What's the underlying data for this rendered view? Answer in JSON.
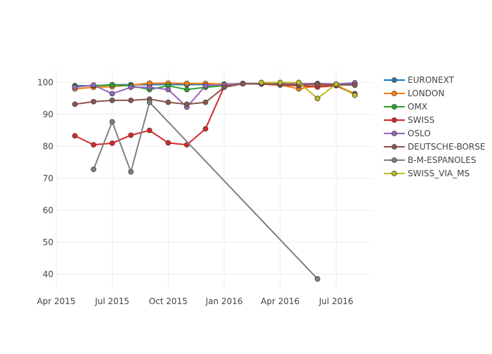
{
  "chart_data": {
    "type": "line",
    "title": "",
    "xlabel": "",
    "ylabel": "",
    "x": [
      "2015-05",
      "2015-06",
      "2015-07",
      "2015-08",
      "2015-09",
      "2015-10",
      "2015-11",
      "2015-12",
      "2016-01",
      "2016-02",
      "2016-03",
      "2016-04",
      "2016-05",
      "2016-06",
      "2016-07",
      "2016-08"
    ],
    "x_ticks": [
      "Apr 2015",
      "Jul 2015",
      "Oct 2015",
      "Jan 2016",
      "Apr 2016",
      "Jul 2016"
    ],
    "y_ticks": [
      40,
      50,
      60,
      70,
      80,
      90,
      100
    ],
    "ylim": [
      35,
      104.5
    ],
    "grid": true,
    "legend_position": "right",
    "series": [
      {
        "name": "EURONEXT",
        "color": "#1f77b4",
        "values": [
          99,
          99,
          99.3,
          99.3,
          99.3,
          99.4,
          99.3,
          99.4,
          99.5,
          99.7,
          99.7,
          99.6,
          99.5,
          99.5,
          99.5,
          99.4
        ]
      },
      {
        "name": "LONDON",
        "color": "#ff7f0e",
        "values": [
          98,
          98.5,
          98.7,
          99.2,
          99.8,
          99.8,
          99.7,
          99.7,
          99.5,
          99.6,
          99.6,
          99.3,
          98,
          99,
          99.2,
          96.5
        ]
      },
      {
        "name": "OMX",
        "color": "#2ca02c",
        "values": [
          98.8,
          99,
          99.2,
          99,
          97.8,
          99,
          97.8,
          98.5,
          99,
          99.6,
          99.6,
          99.4,
          99.3,
          99.3,
          99.3,
          99.2
        ]
      },
      {
        "name": "SWISS",
        "color": "#d62728",
        "values": [
          83.3,
          80.5,
          81,
          83.5,
          85,
          81.1,
          80.5,
          85.5,
          98.7,
          99.6,
          99.5,
          99.2,
          99,
          98.6,
          99,
          96.3
        ]
      },
      {
        "name": "OSLO",
        "color": "#9467bd",
        "values": [
          98.5,
          99.2,
          96.5,
          98.5,
          98.5,
          97.8,
          92.3,
          99,
          99.3,
          99.6,
          99.6,
          99.5,
          99.6,
          99.7,
          99.5,
          99.9
        ]
      },
      {
        "name": "DEUTSCHE-BORSE",
        "color": "#8c564b",
        "values": [
          93.2,
          94,
          94.4,
          94.4,
          94.8,
          93.8,
          93.2,
          93.8,
          98.5,
          99.6,
          99.6,
          99.4,
          99.3,
          99.4,
          99.3,
          99.2
        ]
      },
      {
        "name": "B-M-ESPANOLES",
        "color": "#7f7f7f",
        "values": [
          null,
          72.8,
          87.7,
          72,
          93.8,
          null,
          null,
          null,
          null,
          null,
          null,
          null,
          null,
          38.5,
          null,
          null
        ]
      },
      {
        "name": "SWISS_VIA_MS",
        "color": "#bcbd22",
        "values": [
          null,
          null,
          null,
          null,
          null,
          null,
          null,
          null,
          null,
          null,
          100,
          100,
          100,
          95,
          99.5,
          96
        ]
      }
    ]
  }
}
